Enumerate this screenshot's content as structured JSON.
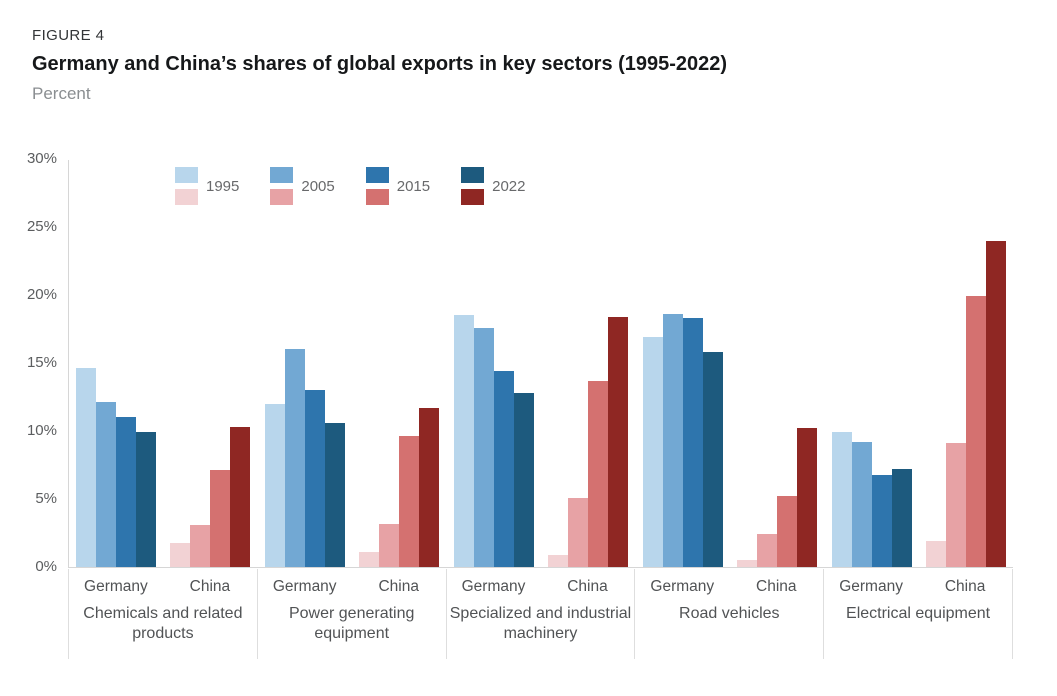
{
  "figure_label": "FIGURE 4",
  "title": "Germany and China’s shares of global exports in key sectors (1995-2022)",
  "subtitle": "Percent",
  "chart_data": {
    "type": "bar",
    "years": [
      "1995",
      "2005",
      "2015",
      "2022"
    ],
    "ylim": [
      0,
      30
    ],
    "y_ticks": [
      "30%",
      "25%",
      "20%",
      "15%",
      "10%",
      "5%",
      "0%"
    ],
    "grid": false,
    "legend_position": "top-left-inside",
    "colors": {
      "germany": [
        "#b8d6ec",
        "#72a8d3",
        "#2e75ad",
        "#1d5a7e"
      ],
      "china": [
        "#f2d2d4",
        "#e7a2a5",
        "#d47170",
        "#8f2723"
      ]
    },
    "groups": [
      {
        "sector": "Chemicals and related products",
        "series": [
          {
            "name": "Germany",
            "values": [
              14.6,
              12.1,
              11.0,
              9.9
            ]
          },
          {
            "name": "China",
            "values": [
              1.8,
              3.1,
              7.1,
              10.3
            ]
          }
        ]
      },
      {
        "sector": "Power generating equipment",
        "series": [
          {
            "name": "Germany",
            "values": [
              12.0,
              16.0,
              13.0,
              10.6
            ]
          },
          {
            "name": "China",
            "values": [
              1.1,
              3.2,
              9.6,
              11.7
            ]
          }
        ]
      },
      {
        "sector": "Specialized and industrial machinery",
        "series": [
          {
            "name": "Germany",
            "values": [
              18.5,
              17.6,
              14.4,
              12.8
            ]
          },
          {
            "name": "China",
            "values": [
              0.9,
              5.1,
              13.7,
              18.4
            ]
          }
        ]
      },
      {
        "sector": "Road vehicles",
        "series": [
          {
            "name": "Germany",
            "values": [
              16.9,
              18.6,
              18.3,
              15.8
            ]
          },
          {
            "name": "China",
            "values": [
              0.5,
              2.4,
              5.2,
              10.2
            ]
          }
        ]
      },
      {
        "sector": "Electrical equipment",
        "series": [
          {
            "name": "Germany",
            "values": [
              9.9,
              9.2,
              6.8,
              7.2
            ]
          },
          {
            "name": "China",
            "values": [
              1.9,
              9.1,
              19.9,
              24.0
            ]
          }
        ]
      }
    ]
  }
}
